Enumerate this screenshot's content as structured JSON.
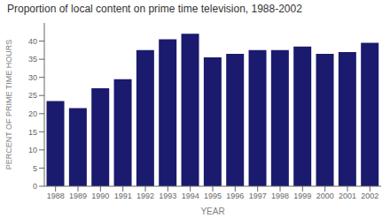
{
  "chart_data": {
    "type": "bar",
    "title": "Proportion of local content on prime time television, 1988-2002",
    "xlabel": "YEAR",
    "ylabel": "PERCENT OF PRIME TIME HOURS",
    "categories": [
      "1988",
      "1989",
      "1990",
      "1991",
      "1992",
      "1993",
      "1994",
      "1995",
      "1996",
      "1997",
      "1998",
      "1999",
      "2000",
      "2001",
      "2002"
    ],
    "values": [
      23.5,
      21.5,
      27.0,
      29.5,
      37.5,
      40.5,
      42.0,
      35.5,
      36.5,
      37.5,
      37.5,
      38.5,
      36.5,
      37.0,
      39.5
    ],
    "color": "#1a1a6e",
    "ylim": [
      0,
      45
    ],
    "yticks": [
      0,
      5,
      10,
      15,
      20,
      25,
      30,
      35,
      40
    ],
    "grid": false
  }
}
